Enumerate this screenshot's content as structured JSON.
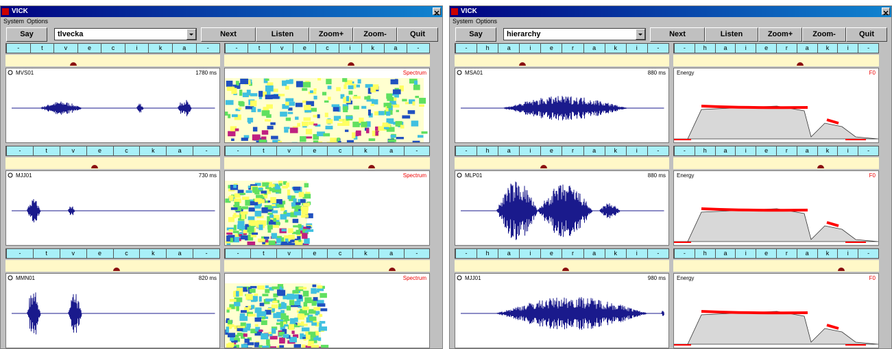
{
  "windows": [
    {
      "title": "VICK",
      "menu": [
        "System",
        "Options"
      ],
      "toolbar": {
        "say": "Say",
        "word": "tlvecka",
        "next": "Next",
        "listen": "Listen",
        "zoom_in": "Zoom+",
        "zoom_out": "Zoom-",
        "quit": "Quit"
      },
      "rows": [
        {
          "phonemes_left": [
            "-",
            "t",
            "v",
            "e",
            "c",
            "i",
            "k",
            "a",
            "-"
          ],
          "phonemes_right": [
            "-",
            "t",
            "v",
            "e",
            "c",
            "i",
            "k",
            "a",
            "-"
          ],
          "speaker": "MVS01",
          "duration": "1780 ms",
          "right_label": "Spectrum"
        },
        {
          "phonemes_left": [
            "-",
            "t",
            "v",
            "e",
            "c",
            "k",
            "a",
            "-"
          ],
          "phonemes_right": [
            "-",
            "t",
            "v",
            "e",
            "c",
            "k",
            "a",
            "-"
          ],
          "speaker": "MJJ01",
          "duration": "730 ms",
          "right_label": "Spectrum"
        },
        {
          "phonemes_left": [
            "-",
            "t",
            "v",
            "e",
            "c",
            "k",
            "a",
            "-"
          ],
          "phonemes_right": [
            "-",
            "t",
            "v",
            "e",
            "c",
            "k",
            "a",
            "-"
          ],
          "speaker": "MMN01",
          "duration": "820 ms",
          "right_label": "Spectrum"
        }
      ]
    },
    {
      "title": "VICK",
      "menu": [
        "System",
        "Options"
      ],
      "toolbar": {
        "say": "Say",
        "word": "hierarchy",
        "next": "Next",
        "listen": "Listen",
        "zoom_in": "Zoom+",
        "zoom_out": "Zoom-",
        "quit": "Quit"
      },
      "rows": [
        {
          "phonemes_left": [
            "-",
            "h",
            "a",
            "i",
            "e",
            "r",
            "a",
            "k",
            "i",
            "-"
          ],
          "phonemes_right": [
            "-",
            "h",
            "a",
            "i",
            "e",
            "r",
            "a",
            "k",
            "i",
            "-"
          ],
          "speaker": "MSA01",
          "duration": "880 ms",
          "right_label": "Energy",
          "right_label2": "F0"
        },
        {
          "phonemes_left": [
            "-",
            "h",
            "a",
            "i",
            "e",
            "r",
            "a",
            "k",
            "i",
            "-"
          ],
          "phonemes_right": [
            "-",
            "h",
            "a",
            "i",
            "e",
            "r",
            "a",
            "k",
            "i",
            "-"
          ],
          "speaker": "MLP01",
          "duration": "880 ms",
          "right_label": "Energy",
          "right_label2": "F0"
        },
        {
          "phonemes_left": [
            "-",
            "h",
            "a",
            "i",
            "e",
            "r",
            "a",
            "k",
            "i",
            "-"
          ],
          "phonemes_right": [
            "-",
            "h",
            "a",
            "i",
            "e",
            "r",
            "a",
            "k",
            "i",
            "-"
          ],
          "speaker": "MJJ01",
          "duration": "980 ms",
          "right_label": "Energy",
          "right_label2": "F0"
        }
      ]
    }
  ]
}
